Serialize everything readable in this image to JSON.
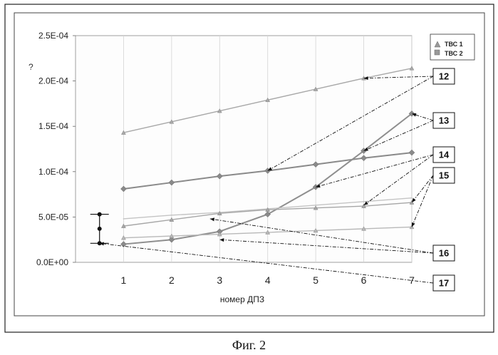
{
  "caption": "Фиг. 2",
  "chart_data": {
    "type": "line",
    "xlabel": "номер ДПЗ",
    "ylabel": "?",
    "x": [
      1,
      2,
      3,
      4,
      5,
      6,
      7
    ],
    "xlim": [
      0,
      7
    ],
    "ylim": [
      0,
      0.00025
    ],
    "yticks": [
      "0.0E+00",
      "5.0E-05",
      "1.0E-04",
      "1.5E-04",
      "2.0E-04",
      "2.5E-04"
    ],
    "xticks": [
      "1",
      "2",
      "3",
      "4",
      "5",
      "6",
      "7"
    ],
    "grid": "vertical",
    "legend": {
      "placement": "top-right",
      "entries": [
        {
          "label": "ТВС 1",
          "marker": "triangle"
        },
        {
          "label": "ТВС 2",
          "marker": "square"
        }
      ]
    },
    "series": [
      {
        "values": [
          0.000143,
          0.000155,
          0.000167,
          0.000179,
          0.000191,
          0.000203,
          0.000214
        ],
        "marker": "triangle",
        "color": "#a8a8a8"
      },
      {
        "values": [
          8.1e-05,
          8.8e-05,
          9.5e-05,
          0.000101,
          0.000108,
          0.000115,
          0.000121
        ],
        "marker": "diamond",
        "color": "#8a8a8a"
      },
      {
        "values": [
          2e-05,
          2.5e-05,
          3.4e-05,
          5.3e-05,
          8.3e-05,
          0.000123,
          0.000164
        ],
        "marker": "diamond",
        "color": "#8e8e8e"
      },
      {
        "values": [
          4.8e-05,
          5.2e-05,
          5.5e-05,
          5.9e-05,
          6.3e-05,
          6.7e-05,
          7.1e-05
        ],
        "marker": "none",
        "color": "#c4c4c4"
      },
      {
        "values": [
          4e-05,
          4.7e-05,
          5.4e-05,
          5.8e-05,
          6e-05,
          6.2e-05,
          6.6e-05
        ],
        "marker": "triangle",
        "color": "#a6a6a6"
      },
      {
        "values": [
          2.7e-05,
          2.9e-05,
          3.1e-05,
          3.3e-05,
          3.5e-05,
          3.7e-05,
          3.9e-05
        ],
        "marker": "triangle",
        "color": "#b8b8b8"
      }
    ],
    "error_bar": {
      "x": 0.5,
      "y_low": 2.1e-05,
      "y_mid": 3.7e-05,
      "y_high": 5.3e-05
    },
    "annotations": [
      {
        "label": "12",
        "points": [
          [
            4,
            0.000101
          ],
          [
            6,
            0.000203
          ]
        ]
      },
      {
        "label": "13",
        "points": [
          [
            6,
            0.000123
          ],
          [
            7,
            0.000164
          ]
        ]
      },
      {
        "label": "14",
        "points": [
          [
            5,
            8.3e-05
          ],
          [
            6,
            6.3e-05
          ]
        ]
      },
      {
        "label": "15",
        "points": [
          [
            7,
            6.6e-05
          ],
          [
            7,
            3.9e-05
          ]
        ]
      },
      {
        "label": "16",
        "points": [
          [
            2.8,
            4.8e-05
          ],
          [
            3,
            2.5e-05
          ]
        ]
      },
      {
        "label": "17",
        "points": [
          [
            0.5,
            2.1e-05
          ]
        ]
      }
    ]
  }
}
